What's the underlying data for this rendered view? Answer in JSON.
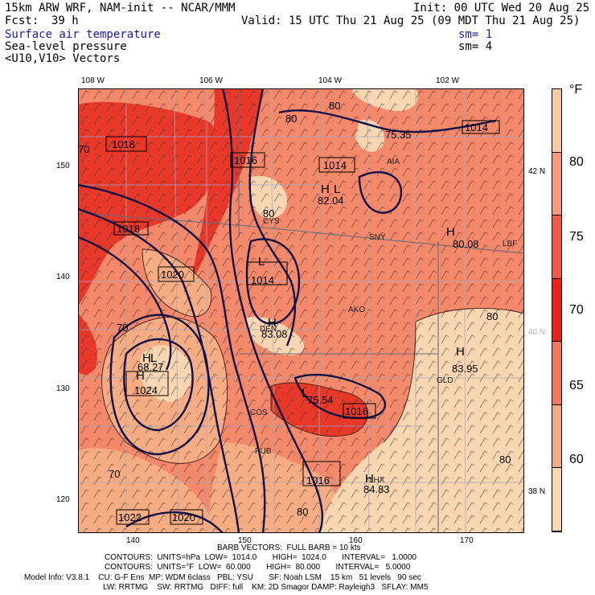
{
  "header": {
    "model": "15km ARW WRF, NAM-init -- NCAR/MMM",
    "init": "Init: 00 UTC Wed 20 Aug 25",
    "fcst_label": "Fcst:",
    "fcst_value": "39 h",
    "valid": "Valid: 15 UTC Thu 21 Aug 25 (09 MDT Thu 21 Aug 25)"
  },
  "fields": [
    {
      "label": "Surface air temperature",
      "sm": "",
      "color": "#1a1aa8"
    },
    {
      "label": "Sea-level pressure",
      "sm": "sm= 1",
      "color": "#000000"
    },
    {
      "label": "<U10,V10> Vectors",
      "sm": "sm= 4",
      "color": "#000000"
    }
  ],
  "top_ticks": [
    "108 W",
    "106 W",
    "104 W",
    "102 W"
  ],
  "left_ticks": [
    "150",
    "140",
    "130",
    "120"
  ],
  "bottom_ticks": [
    "140",
    "150",
    "160",
    "170"
  ],
  "right_ticks": [
    "42 N",
    "40 N",
    "38 N"
  ],
  "colorbar": {
    "unit": "°F",
    "labels": [
      "80",
      "75",
      "70",
      "65",
      "60"
    ],
    "colors": [
      "#f7c9a6",
      "#f79a7e",
      "#f25a48",
      "#e82020",
      "#f27a5c",
      "#f7ad84",
      "#f9d6b2"
    ]
  },
  "footer": {
    "barb": "BARB VECTORS:  FULL BARB = 10 kts",
    "contours1": "CONTOURS:  UNITS=hPa  LOW=  1014.0       HIGH=  1024.0       INTERVAL=   1.0000",
    "contours2": "CONTOURS:  UNITS=°F  LOW=  60.000       HIGH=  80.000       INTERVAL=   5.0000",
    "model1": "Model Info: V3.8.1    CU: G-F Ens  MP: WDM 6class   PBL: YSU       SF: Noah LSM    15 km   51 levels   90 sec",
    "model2": "LW: RRTMG    SW: RRTMG   DIFF: full    KM: 2D Smagor DAMP: Rayleigh3   SFLAY: MM5"
  },
  "map": {
    "pressure_boxes": [
      "1018",
      "1016",
      "1014",
      "1018",
      "1020",
      "1014",
      "1024",
      "1022",
      "1020",
      "1016",
      "1016",
      "1014"
    ],
    "highs": [
      "H",
      "H",
      "H",
      "H",
      "H",
      "H",
      "H"
    ],
    "lows": [
      "L",
      "L",
      "L",
      "L"
    ],
    "temp_extremes": [
      "82.04",
      "80.08",
      "83.08",
      "83.95",
      "68.27",
      "75.54",
      "84.83",
      "75.35"
    ],
    "contour_labels": [
      "80",
      "80",
      "80",
      "80",
      "80",
      "80",
      "70",
      "70",
      "70"
    ],
    "stations": [
      "AKO",
      "GLD",
      "SNY",
      "AIA",
      "LBF",
      "DEN",
      "CYS",
      "COS",
      "PUB",
      "LHX"
    ]
  }
}
